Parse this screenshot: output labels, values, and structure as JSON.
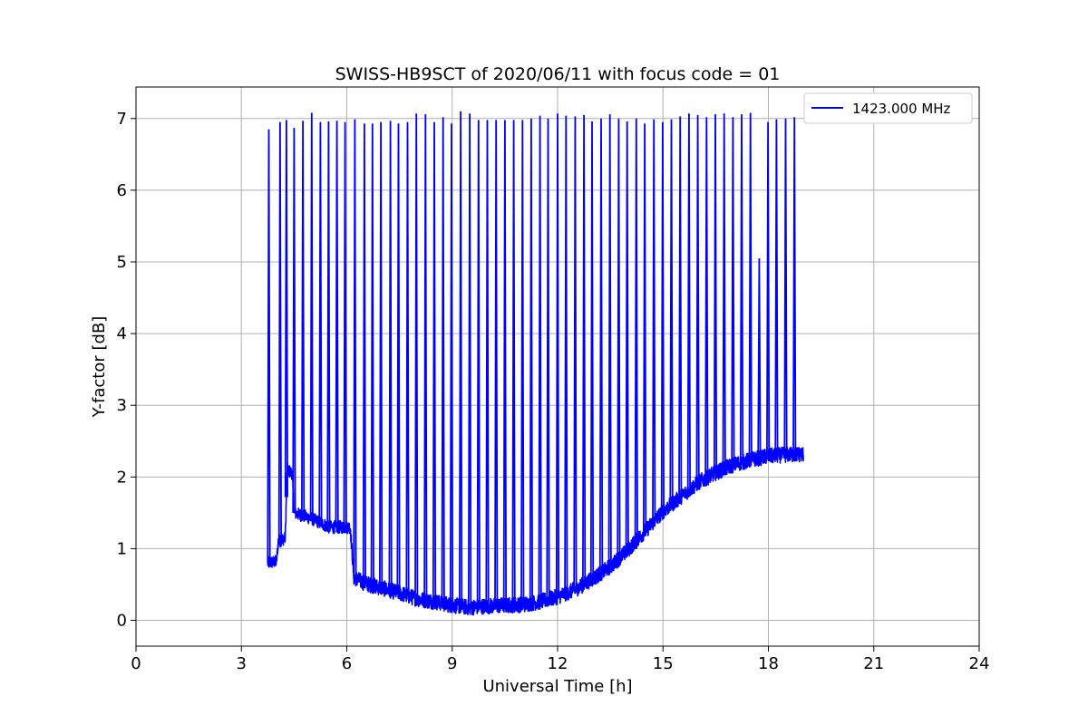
{
  "chart_data": {
    "type": "line",
    "title": "SWISS-HB9SCT of 2020/06/11 with focus code = 01",
    "xlabel": "Universal Time [h]",
    "ylabel": "Y-factor [dB]",
    "xlim": [
      0,
      24
    ],
    "ylim": [
      -0.36,
      7.44
    ],
    "xticks": [
      0,
      3,
      6,
      9,
      12,
      15,
      18,
      21,
      24
    ],
    "yticks": [
      0,
      1,
      2,
      3,
      4,
      5,
      6,
      7
    ],
    "grid": true,
    "legend_position": "top-right",
    "series": [
      {
        "name": "1423.000 MHz",
        "color": "#0000ff",
        "baseline": [
          {
            "t": 3.75,
            "y": 0.8
          },
          {
            "t": 4.0,
            "y": 0.82
          },
          {
            "t": 4.05,
            "y": 1.1
          },
          {
            "t": 4.25,
            "y": 1.15
          },
          {
            "t": 4.3,
            "y": 2.1
          },
          {
            "t": 4.45,
            "y": 2.05
          },
          {
            "t": 4.5,
            "y": 1.5
          },
          {
            "t": 5.0,
            "y": 1.42
          },
          {
            "t": 5.5,
            "y": 1.3
          },
          {
            "t": 6.0,
            "y": 1.3
          },
          {
            "t": 6.1,
            "y": 1.3
          },
          {
            "t": 6.2,
            "y": 0.6
          },
          {
            "t": 6.5,
            "y": 0.52
          },
          {
            "t": 7.0,
            "y": 0.45
          },
          {
            "t": 7.5,
            "y": 0.38
          },
          {
            "t": 8.0,
            "y": 0.3
          },
          {
            "t": 8.5,
            "y": 0.26
          },
          {
            "t": 9.0,
            "y": 0.21
          },
          {
            "t": 9.5,
            "y": 0.18
          },
          {
            "t": 10.0,
            "y": 0.2
          },
          {
            "t": 10.5,
            "y": 0.21
          },
          {
            "t": 11.0,
            "y": 0.22
          },
          {
            "t": 11.5,
            "y": 0.26
          },
          {
            "t": 12.0,
            "y": 0.33
          },
          {
            "t": 12.5,
            "y": 0.43
          },
          {
            "t": 13.0,
            "y": 0.58
          },
          {
            "t": 13.5,
            "y": 0.75
          },
          {
            "t": 14.0,
            "y": 0.98
          },
          {
            "t": 14.5,
            "y": 1.25
          },
          {
            "t": 15.0,
            "y": 1.52
          },
          {
            "t": 15.5,
            "y": 1.72
          },
          {
            "t": 16.0,
            "y": 1.92
          },
          {
            "t": 16.5,
            "y": 2.06
          },
          {
            "t": 17.0,
            "y": 2.17
          },
          {
            "t": 17.5,
            "y": 2.24
          },
          {
            "t": 18.0,
            "y": 2.29
          },
          {
            "t": 18.5,
            "y": 2.31
          },
          {
            "t": 19.0,
            "y": 2.32
          }
        ],
        "spikes": [
          {
            "t": 3.78,
            "y": 6.85
          },
          {
            "t": 4.1,
            "y": 6.95
          },
          {
            "t": 4.28,
            "y": 6.98
          },
          {
            "t": 4.5,
            "y": 6.87
          },
          {
            "t": 4.75,
            "y": 6.97
          },
          {
            "t": 5.0,
            "y": 7.08
          },
          {
            "t": 5.25,
            "y": 6.95
          },
          {
            "t": 5.48,
            "y": 6.96
          },
          {
            "t": 5.72,
            "y": 6.97
          },
          {
            "t": 5.95,
            "y": 6.95
          },
          {
            "t": 6.23,
            "y": 6.99
          },
          {
            "t": 6.5,
            "y": 6.93
          },
          {
            "t": 6.73,
            "y": 6.93
          },
          {
            "t": 6.97,
            "y": 6.95
          },
          {
            "t": 7.24,
            "y": 6.97
          },
          {
            "t": 7.47,
            "y": 6.93
          },
          {
            "t": 7.73,
            "y": 6.95
          },
          {
            "t": 7.98,
            "y": 7.07
          },
          {
            "t": 8.24,
            "y": 7.06
          },
          {
            "t": 8.49,
            "y": 6.95
          },
          {
            "t": 8.74,
            "y": 7.02
          },
          {
            "t": 8.98,
            "y": 6.93
          },
          {
            "t": 9.24,
            "y": 7.1
          },
          {
            "t": 9.5,
            "y": 7.07
          },
          {
            "t": 9.75,
            "y": 6.98
          },
          {
            "t": 10.0,
            "y": 6.98
          },
          {
            "t": 10.25,
            "y": 6.98
          },
          {
            "t": 10.5,
            "y": 6.98
          },
          {
            "t": 10.75,
            "y": 6.98
          },
          {
            "t": 11.0,
            "y": 6.98
          },
          {
            "t": 11.25,
            "y": 7.0
          },
          {
            "t": 11.5,
            "y": 7.04
          },
          {
            "t": 11.73,
            "y": 7.0
          },
          {
            "t": 12.0,
            "y": 7.07
          },
          {
            "t": 12.24,
            "y": 7.04
          },
          {
            "t": 12.5,
            "y": 7.03
          },
          {
            "t": 12.75,
            "y": 7.05
          },
          {
            "t": 12.98,
            "y": 6.96
          },
          {
            "t": 13.24,
            "y": 7.0
          },
          {
            "t": 13.49,
            "y": 7.06
          },
          {
            "t": 13.74,
            "y": 7.0
          },
          {
            "t": 13.98,
            "y": 6.96
          },
          {
            "t": 14.24,
            "y": 7.0
          },
          {
            "t": 14.48,
            "y": 6.93
          },
          {
            "t": 14.74,
            "y": 6.99
          },
          {
            "t": 14.99,
            "y": 6.95
          },
          {
            "t": 15.24,
            "y": 6.99
          },
          {
            "t": 15.49,
            "y": 7.03
          },
          {
            "t": 15.74,
            "y": 7.07
          },
          {
            "t": 15.99,
            "y": 7.05
          },
          {
            "t": 16.24,
            "y": 7.02
          },
          {
            "t": 16.49,
            "y": 7.06
          },
          {
            "t": 16.74,
            "y": 7.07
          },
          {
            "t": 16.99,
            "y": 7.02
          },
          {
            "t": 17.24,
            "y": 7.06
          },
          {
            "t": 17.49,
            "y": 7.08
          },
          {
            "t": 17.74,
            "y": 5.05
          },
          {
            "t": 17.99,
            "y": 6.95
          },
          {
            "t": 18.23,
            "y": 6.99
          },
          {
            "t": 18.49,
            "y": 7.0
          },
          {
            "t": 18.74,
            "y": 7.02
          }
        ]
      }
    ]
  }
}
